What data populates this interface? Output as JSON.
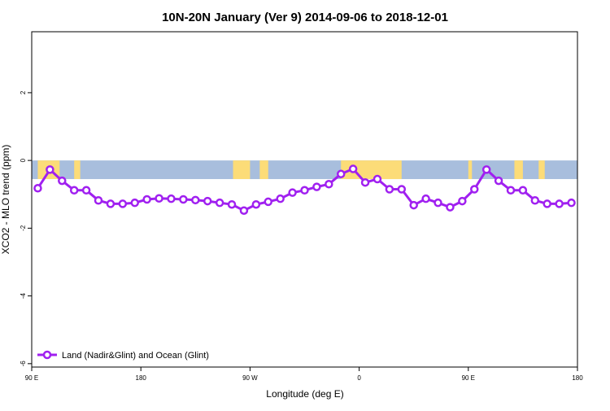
{
  "chart_data": {
    "type": "line",
    "title": "10N-20N January (Ver 9)   2014-09-06 to 2018-12-01",
    "xlabel": "Longitude (deg E)",
    "ylabel": "XCO2 - MLO trend (ppm)",
    "x_ticks": [
      {
        "value": 90,
        "label": "90 E"
      },
      {
        "value": 180,
        "label": "180"
      },
      {
        "value": 270,
        "label": "90 W"
      },
      {
        "value": 360,
        "label": "0"
      },
      {
        "value": 450,
        "label": "90 E"
      },
      {
        "value": 540,
        "label": "180"
      }
    ],
    "y_ticks": [
      {
        "value": 2,
        "label": "2"
      },
      {
        "value": 0,
        "label": "0"
      },
      {
        "value": -2,
        "label": "-2"
      },
      {
        "value": -4,
        "label": "-4"
      },
      {
        "value": -6,
        "label": "-6"
      }
    ],
    "xlim": [
      90,
      540
    ],
    "ylim": [
      -6.1,
      3.8
    ],
    "band": {
      "y_top": 0,
      "y_bottom": -0.55,
      "ocean_color": "#a8bedd",
      "land_color": "#fcdc78"
    },
    "land_segments": [
      [
        95,
        113
      ],
      [
        125,
        130
      ],
      [
        256,
        270
      ],
      [
        278,
        285
      ],
      [
        345,
        395
      ],
      [
        450,
        453
      ],
      [
        488,
        495
      ],
      [
        508,
        513
      ]
    ],
    "series": [
      {
        "name": "Land (Nadir&Glint) and Ocean (Glint)",
        "color": "#a020f0",
        "x": [
          95,
          105,
          115,
          125,
          135,
          145,
          155,
          165,
          175,
          185,
          195,
          205,
          215,
          225,
          235,
          245,
          255,
          265,
          275,
          285,
          295,
          305,
          315,
          325,
          335,
          345,
          355,
          365,
          375,
          385,
          395,
          405,
          415,
          425,
          435,
          445,
          455,
          465,
          475,
          485,
          495,
          505,
          515,
          525,
          535
        ],
        "values": [
          -0.82,
          -0.27,
          -0.6,
          -0.88,
          -0.88,
          -1.18,
          -1.28,
          -1.28,
          -1.25,
          -1.15,
          -1.12,
          -1.13,
          -1.15,
          -1.17,
          -1.2,
          -1.25,
          -1.3,
          -1.48,
          -1.3,
          -1.22,
          -1.13,
          -0.95,
          -0.88,
          -0.78,
          -0.7,
          -0.4,
          -0.25,
          -0.65,
          -0.55,
          -0.85,
          -0.85,
          -1.32,
          -1.13,
          -1.25,
          -1.38,
          -1.2,
          -0.85,
          -0.27,
          -0.6,
          -0.88,
          -0.88,
          -1.18,
          -1.28,
          -1.28,
          -1.25
        ]
      }
    ],
    "legend": {
      "position": "bottom-left"
    }
  }
}
